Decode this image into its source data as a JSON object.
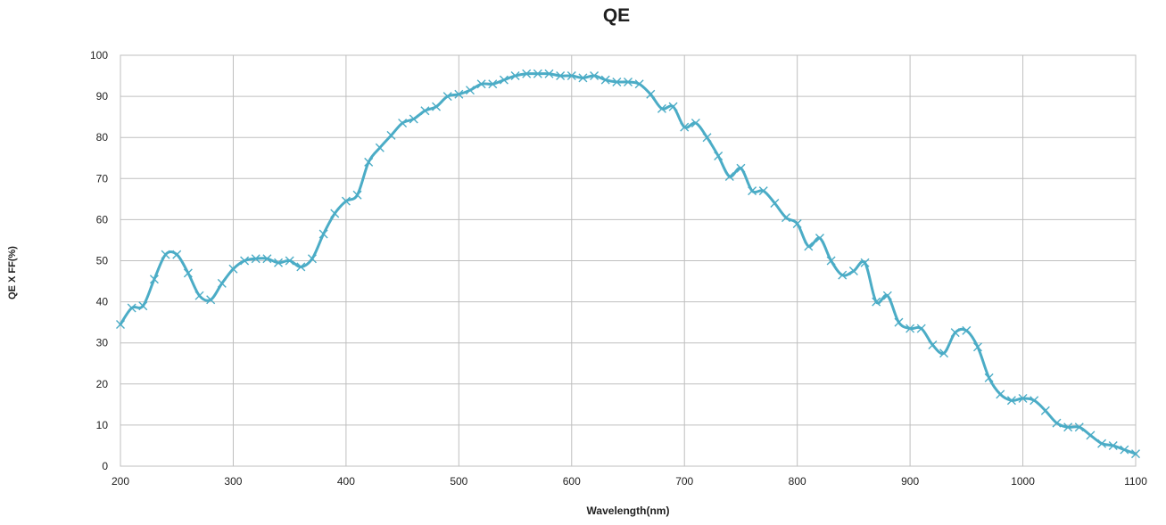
{
  "chart_data": {
    "type": "line",
    "title": "QE",
    "xlabel": "Wavelength(nm)",
    "ylabel": "QE X FF(%)",
    "xlim": [
      200,
      1100
    ],
    "ylim": [
      0,
      100
    ],
    "x_ticks": [
      "200",
      "300",
      "400",
      "500",
      "600",
      "700",
      "800",
      "900",
      "1000",
      "1100"
    ],
    "y_ticks": [
      "0",
      "10",
      "20",
      "30",
      "40",
      "50",
      "60",
      "70",
      "80",
      "90",
      "100"
    ],
    "grid": true,
    "legend": "none",
    "line_color": "#4bacc6",
    "series": [
      {
        "marker": "x",
        "points": [
          [
            200,
            34.5
          ],
          [
            210,
            38.5
          ],
          [
            220,
            39
          ],
          [
            230,
            45.5
          ],
          [
            240,
            51.5
          ],
          [
            250,
            51.5
          ],
          [
            260,
            47
          ],
          [
            270,
            41.5
          ],
          [
            280,
            40.5
          ],
          [
            290,
            44.5
          ],
          [
            300,
            48
          ],
          [
            310,
            50
          ],
          [
            320,
            50.5
          ],
          [
            330,
            50.5
          ],
          [
            340,
            49.5
          ],
          [
            350,
            50
          ],
          [
            360,
            48.5
          ],
          [
            370,
            50.5
          ],
          [
            380,
            56.5
          ],
          [
            390,
            61.5
          ],
          [
            400,
            64.5
          ],
          [
            410,
            66
          ],
          [
            420,
            74
          ],
          [
            430,
            77.5
          ],
          [
            440,
            80.5
          ],
          [
            450,
            83.5
          ],
          [
            460,
            84.5
          ],
          [
            470,
            86.5
          ],
          [
            480,
            87.5
          ],
          [
            490,
            90
          ],
          [
            500,
            90.5
          ],
          [
            510,
            91.5
          ],
          [
            520,
            93
          ],
          [
            530,
            93
          ],
          [
            540,
            94
          ],
          [
            550,
            95
          ],
          [
            560,
            95.5
          ],
          [
            570,
            95.5
          ],
          [
            580,
            95.5
          ],
          [
            590,
            95
          ],
          [
            600,
            95
          ],
          [
            610,
            94.5
          ],
          [
            620,
            95
          ],
          [
            630,
            94
          ],
          [
            640,
            93.5
          ],
          [
            650,
            93.5
          ],
          [
            660,
            93
          ],
          [
            670,
            90.5
          ],
          [
            680,
            87
          ],
          [
            690,
            87.5
          ],
          [
            700,
            82.5
          ],
          [
            710,
            83.5
          ],
          [
            720,
            80
          ],
          [
            730,
            75.5
          ],
          [
            740,
            70.5
          ],
          [
            750,
            72.5
          ],
          [
            760,
            67
          ],
          [
            770,
            67
          ],
          [
            780,
            64
          ],
          [
            790,
            60.5
          ],
          [
            800,
            59
          ],
          [
            810,
            53.5
          ],
          [
            820,
            55.5
          ],
          [
            830,
            50
          ],
          [
            840,
            46.5
          ],
          [
            850,
            47.5
          ],
          [
            860,
            49.5
          ],
          [
            870,
            40
          ],
          [
            880,
            41.5
          ],
          [
            890,
            35
          ],
          [
            900,
            33.5
          ],
          [
            910,
            33.5
          ],
          [
            920,
            29.5
          ],
          [
            930,
            27.5
          ],
          [
            940,
            32.5
          ],
          [
            950,
            33
          ],
          [
            960,
            29
          ],
          [
            970,
            21.5
          ],
          [
            980,
            17.5
          ],
          [
            990,
            16
          ],
          [
            1000,
            16.5
          ],
          [
            1010,
            16
          ],
          [
            1020,
            13.5
          ],
          [
            1030,
            10.5
          ],
          [
            1040,
            9.5
          ],
          [
            1050,
            9.5
          ],
          [
            1060,
            7.5
          ],
          [
            1070,
            5.5
          ],
          [
            1080,
            5
          ],
          [
            1090,
            4
          ],
          [
            1100,
            3
          ]
        ]
      }
    ]
  }
}
